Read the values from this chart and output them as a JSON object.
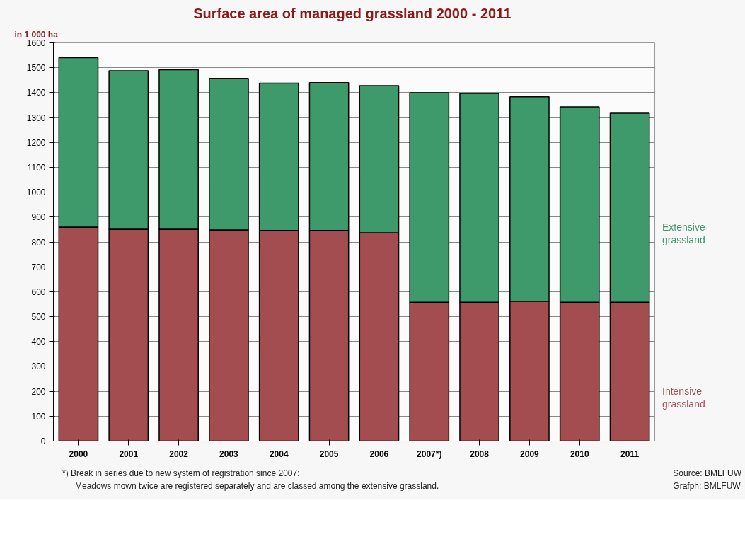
{
  "chart_data": {
    "type": "bar",
    "stacked": true,
    "title": "Surface area of managed grassland  2000 - 2011",
    "ylabel": "in 1 000 ha",
    "categories": [
      "2000",
      "2001",
      "2002",
      "2003",
      "2004",
      "2005",
      "2006",
      "2007*)",
      "2008",
      "2009",
      "2010",
      "2011"
    ],
    "series": [
      {
        "name": "Intensive grassland",
        "color": "#a34d51",
        "values": [
          860,
          851,
          851,
          848,
          846,
          846,
          837,
          558,
          558,
          562,
          558,
          558
        ]
      },
      {
        "name": "Extensive grassland",
        "color": "#3f9a6b",
        "values": [
          680,
          637,
          641,
          609,
          592,
          594,
          591,
          842,
          839,
          821,
          785,
          759
        ]
      }
    ],
    "ylim": [
      0,
      1600
    ],
    "yticks": [
      0,
      100,
      200,
      300,
      400,
      500,
      600,
      700,
      800,
      900,
      1000,
      1100,
      1200,
      1300,
      1400,
      1500,
      1600
    ],
    "grid": "y",
    "annotations": [
      "*) Break in series due to new system of registration since 2007:",
      "Meadows mown twice are registered separately and are classed among the extensive grassland.",
      "Source: BMLFUW",
      "Grafph: BMLFUW"
    ]
  }
}
